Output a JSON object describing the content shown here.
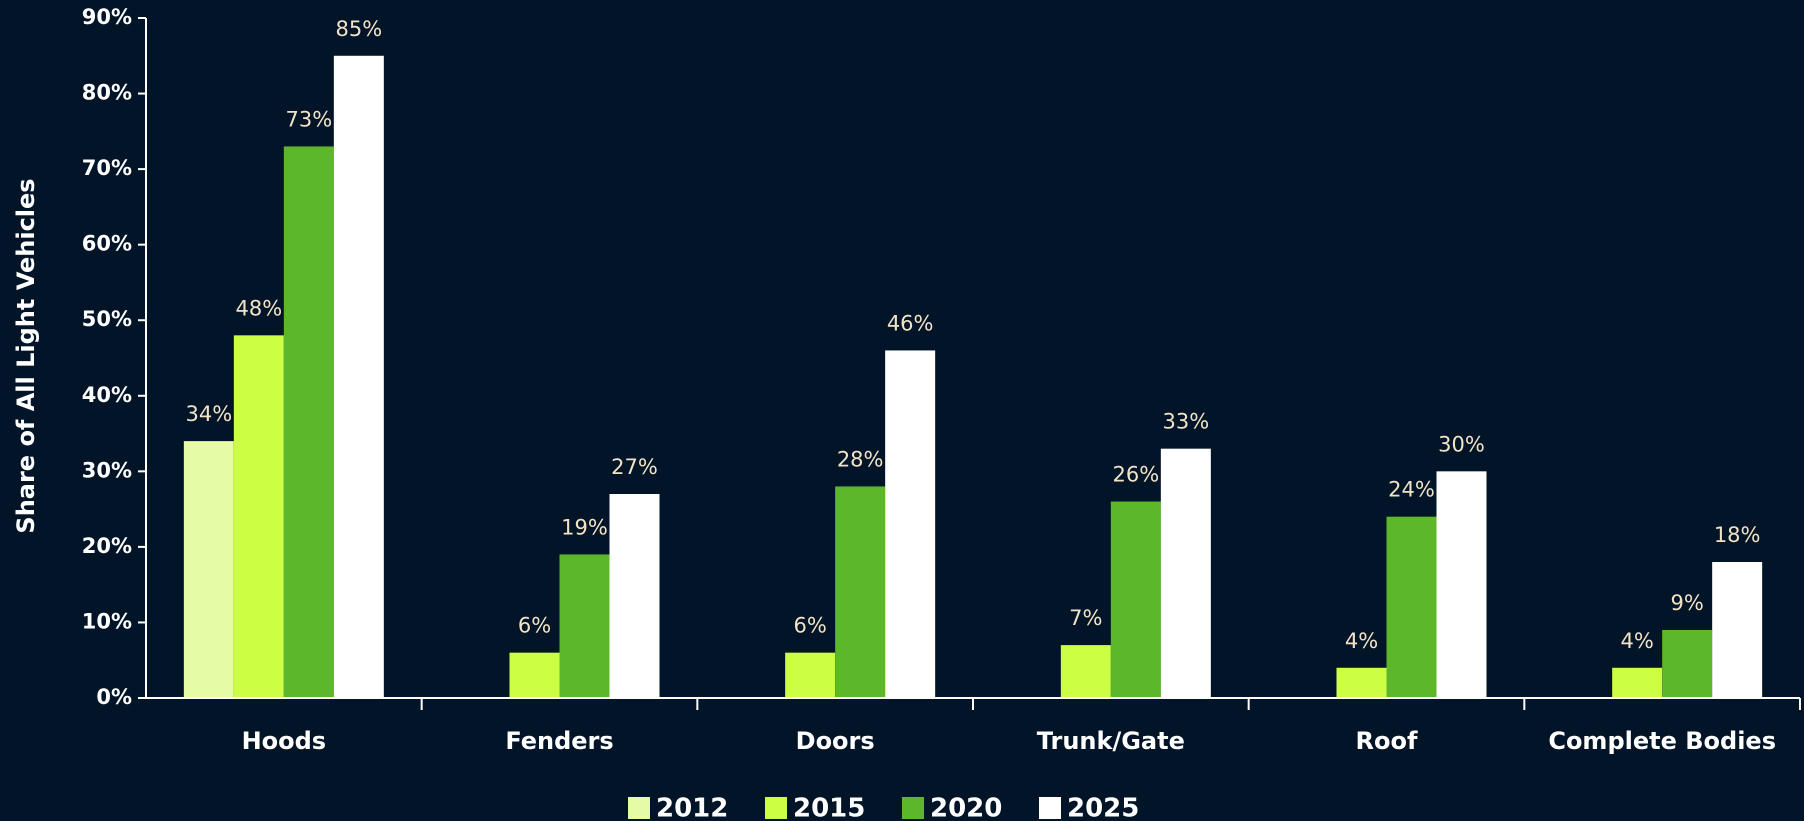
{
  "chart_data": {
    "type": "bar",
    "y_label": "Share of All Light Vehicles",
    "categories": [
      "Hoods",
      "Fenders",
      "Doors",
      "Trunk/Gate",
      "Roof",
      "Complete Bodies"
    ],
    "series": [
      {
        "name": "2012",
        "color": "#e6fba6",
        "values": [
          34,
          null,
          null,
          null,
          null,
          null
        ],
        "value_labels": [
          "34%",
          null,
          null,
          null,
          null,
          null
        ]
      },
      {
        "name": "2015",
        "color": "#ccff44",
        "values": [
          48,
          6,
          6,
          7,
          4,
          4
        ],
        "value_labels": [
          "48%",
          "6%",
          "6%",
          "7%",
          "4%",
          "4%"
        ]
      },
      {
        "name": "2020",
        "color": "#5cb82a",
        "values": [
          73,
          19,
          28,
          26,
          24,
          9
        ],
        "value_labels": [
          "73%",
          "19%",
          "28%",
          "26%",
          "24%",
          "9%"
        ]
      },
      {
        "name": "2025",
        "color": "#ffffff",
        "values": [
          85,
          27,
          46,
          33,
          30,
          18
        ],
        "value_labels": [
          "85%",
          "27%",
          "46%",
          "33%",
          "30%",
          "18%"
        ]
      }
    ],
    "ylim": [
      0,
      90
    ],
    "yticks": [
      {
        "value": 0,
        "label": "0%"
      },
      {
        "value": 10,
        "label": "10%"
      },
      {
        "value": 20,
        "label": "20%"
      },
      {
        "value": 30,
        "label": "30%"
      },
      {
        "value": 40,
        "label": "40%"
      },
      {
        "value": 50,
        "label": "50%"
      },
      {
        "value": 60,
        "label": "60%"
      },
      {
        "value": 70,
        "label": "70%"
      },
      {
        "value": 80,
        "label": "80%"
      },
      {
        "value": 90,
        "label": "90%"
      }
    ],
    "legend": "bottom"
  }
}
